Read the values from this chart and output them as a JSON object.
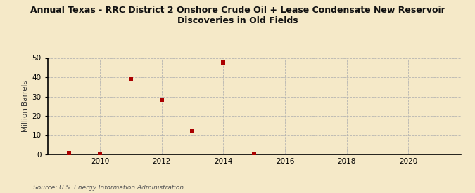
{
  "title": "Annual Texas - RRC District 2 Onshore Crude Oil + Lease Condensate New Reservoir\nDiscoveries in Old Fields",
  "ylabel": "Million Barrels",
  "source": "Source: U.S. Energy Information Administration",
  "background_color": "#f5e9c8",
  "plot_background_color": "#f5e9c8",
  "marker_color": "#aa0000",
  "marker_size": 18,
  "xlim": [
    2008.3,
    2021.7
  ],
  "ylim": [
    0,
    50
  ],
  "yticks": [
    0,
    10,
    20,
    30,
    40,
    50
  ],
  "xticks": [
    2010,
    2012,
    2014,
    2016,
    2018,
    2020
  ],
  "data_years": [
    2009,
    2010,
    2011,
    2012,
    2013,
    2014,
    2015
  ],
  "data_values": [
    0.8,
    0.1,
    39.0,
    28.0,
    12.0,
    47.5,
    0.5
  ]
}
